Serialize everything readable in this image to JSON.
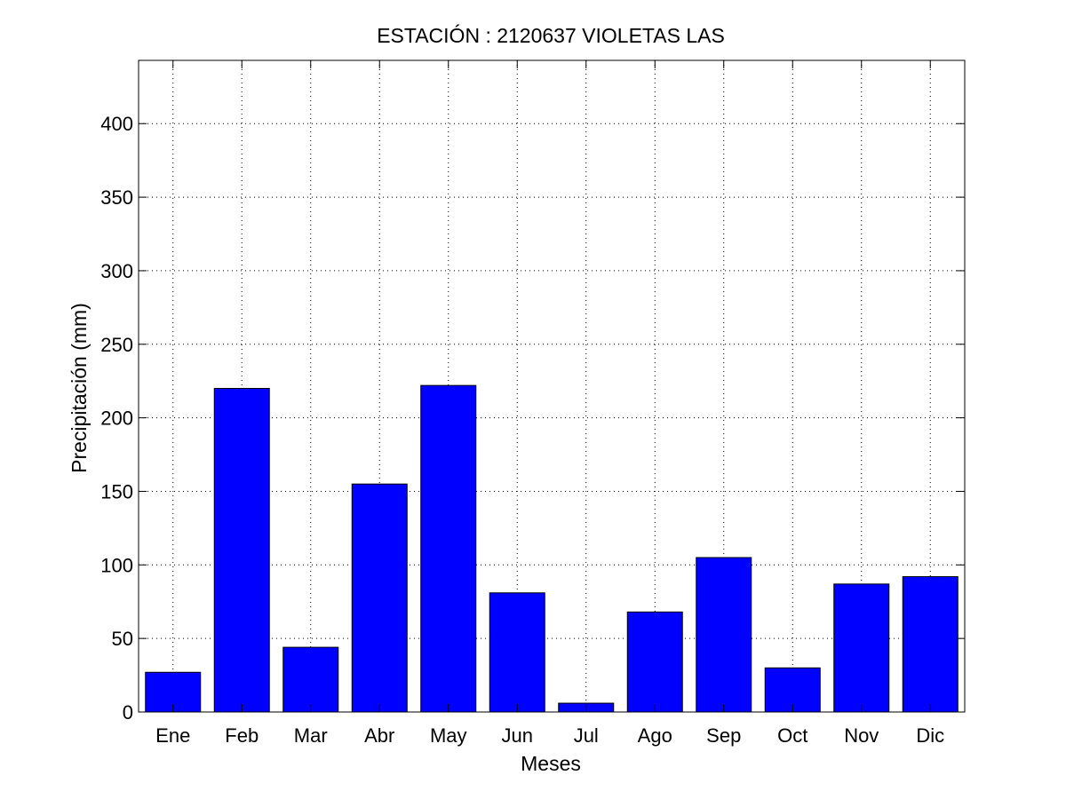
{
  "chart_data": {
    "type": "bar",
    "title": "ESTACIÓN :  2120637  VIOLETAS LAS",
    "xlabel": "Meses",
    "ylabel": "Precipitación (mm)",
    "categories": [
      "Ene",
      "Feb",
      "Mar",
      "Abr",
      "May",
      "Jun",
      "Jul",
      "Ago",
      "Sep",
      "Oct",
      "Nov",
      "Dic"
    ],
    "values": [
      27,
      220,
      44,
      155,
      222,
      81,
      6,
      68,
      105,
      30,
      87,
      92
    ],
    "ylim": [
      0,
      443
    ],
    "yticks": [
      0,
      50,
      100,
      150,
      200,
      250,
      300,
      350,
      400
    ],
    "grid": true,
    "bar_color": "#0000ff",
    "edge_color": "#000000"
  }
}
